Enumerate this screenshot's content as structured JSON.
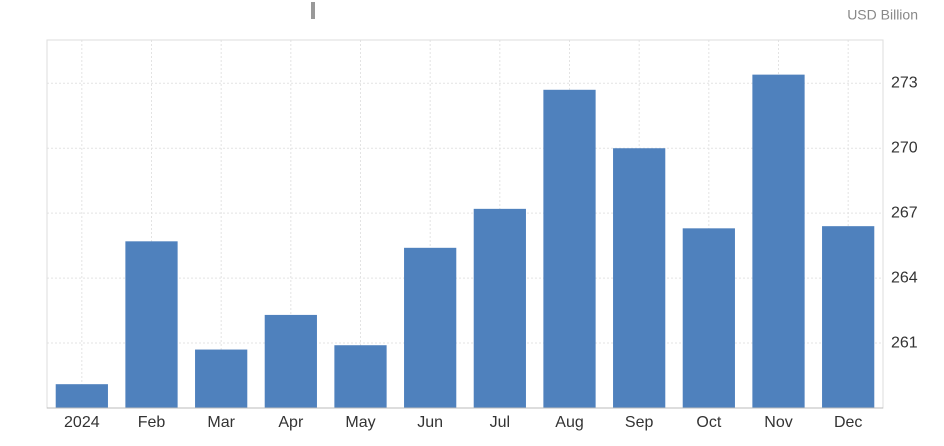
{
  "chart_data": {
    "type": "bar",
    "unit": "USD Billion",
    "categories": [
      "2024",
      "Feb",
      "Mar",
      "Apr",
      "May",
      "Jun",
      "Jul",
      "Aug",
      "Sep",
      "Oct",
      "Nov",
      "Dec"
    ],
    "values": [
      259.1,
      265.7,
      260.7,
      262.3,
      260.9,
      265.4,
      267.2,
      272.7,
      270.0,
      266.3,
      273.4,
      266.4
    ],
    "color": "#4f81bd",
    "ylim": [
      258,
      275
    ],
    "yticks": [
      261,
      264,
      267,
      270,
      273
    ],
    "grid": true
  }
}
